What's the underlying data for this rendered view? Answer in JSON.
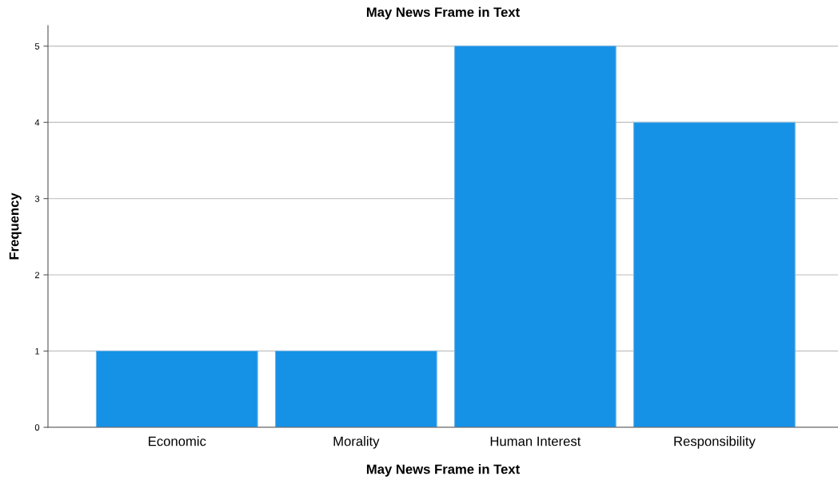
{
  "chart_data": {
    "type": "bar",
    "title": "May News Frame in Text",
    "xlabel": "May News Frame in Text",
    "ylabel": "Frequency",
    "categories": [
      "Economic",
      "Morality",
      "Human Interest",
      "Responsibility"
    ],
    "values": [
      1,
      1,
      5,
      4
    ],
    "color": "#1591e6",
    "ylim": [
      0,
      5.27
    ],
    "yticks": [
      0,
      1,
      2,
      3,
      4,
      5
    ],
    "grid": "y"
  }
}
